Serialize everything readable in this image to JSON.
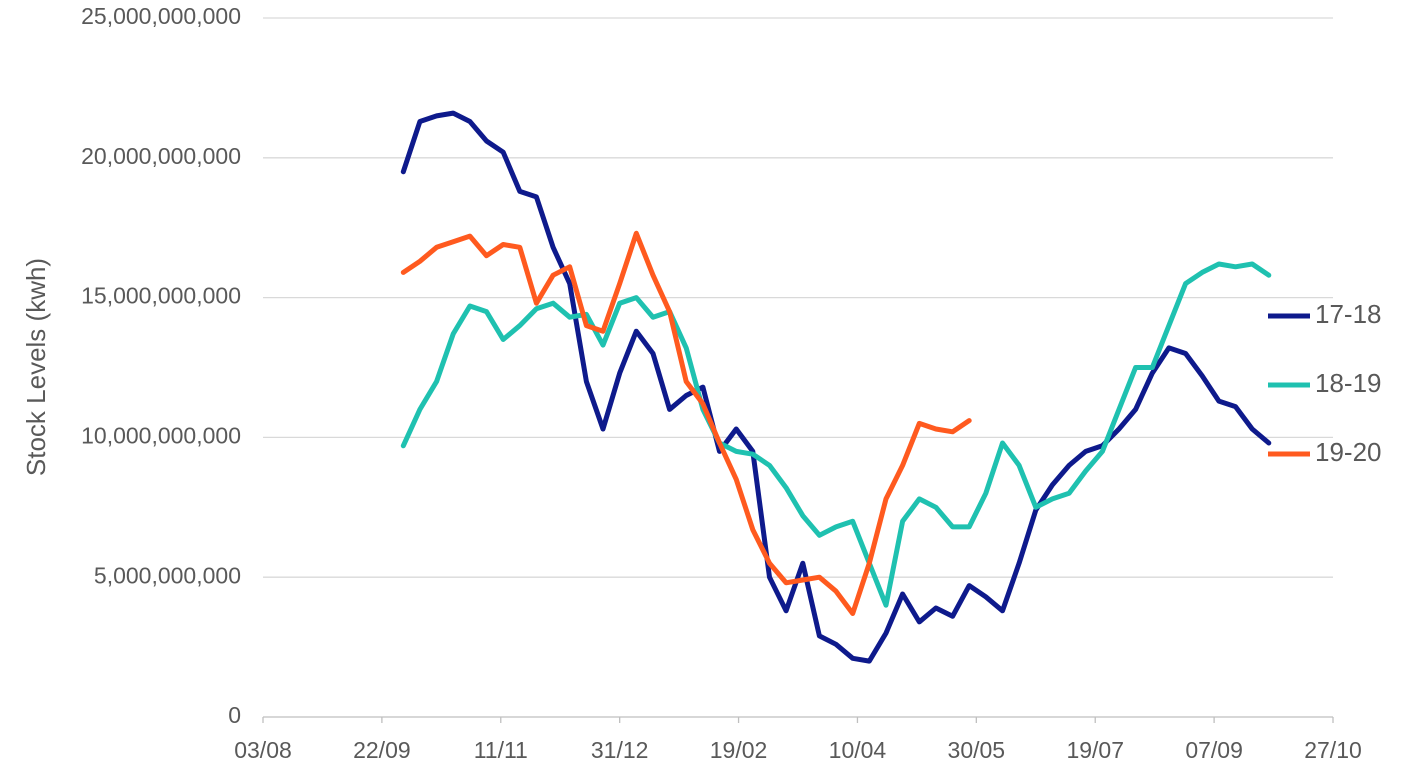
{
  "chart_data": {
    "type": "line",
    "ylabel": "Stock Levels  (kwh)",
    "x": [
      "01/10",
      "08/10",
      "15/10",
      "22/10",
      "29/10",
      "05/11",
      "12/11",
      "19/11",
      "26/11",
      "03/12",
      "10/12",
      "17/12",
      "24/12",
      "31/12",
      "07/01",
      "14/01",
      "21/01",
      "28/01",
      "04/02",
      "11/02",
      "18/02",
      "25/02",
      "04/03",
      "11/03",
      "18/03",
      "25/03",
      "01/04",
      "08/04",
      "15/04",
      "22/04",
      "29/04",
      "06/05",
      "13/05",
      "20/05",
      "27/05",
      "03/06",
      "10/06",
      "17/06",
      "24/06",
      "01/07",
      "08/07",
      "15/07",
      "22/07",
      "29/07",
      "05/08",
      "12/08",
      "19/08",
      "26/08",
      "02/09",
      "09/09",
      "16/09",
      "23/09",
      "30/09"
    ],
    "xticks": [
      "03/08",
      "22/09",
      "11/11",
      "31/12",
      "19/02",
      "10/04",
      "30/05",
      "19/07",
      "07/09",
      "27/10"
    ],
    "ylim": [
      0,
      25000000000
    ],
    "yticks": [
      {
        "value": 0,
        "label": "0"
      },
      {
        "value": 5000000000,
        "label": "5,000,000,000"
      },
      {
        "value": 10000000000,
        "label": "10,000,000,000"
      },
      {
        "value": 15000000000,
        "label": "15,000,000,000"
      },
      {
        "value": 20000000000,
        "label": "20,000,000,000"
      },
      {
        "value": 25000000000,
        "label": "25,000,000,000"
      }
    ],
    "grid": true,
    "legend": "right",
    "series": [
      {
        "name": "17-18",
        "color": "#0e1a8c",
        "values": [
          19500000000,
          21300000000,
          21500000000,
          21600000000,
          21300000000,
          20600000000,
          20200000000,
          18800000000,
          18600000000,
          16800000000,
          15500000000,
          12000000000,
          10300000000,
          12300000000,
          13800000000,
          13000000000,
          11000000000,
          11500000000,
          11800000000,
          9500000000,
          10300000000,
          9500000000,
          5000000000,
          3800000000,
          5500000000,
          2900000000,
          2600000000,
          2100000000,
          2000000000,
          3000000000,
          4400000000,
          3400000000,
          3900000000,
          3600000000,
          4700000000,
          4300000000,
          3800000000,
          5500000000,
          7400000000,
          8300000000,
          9000000000,
          9500000000,
          9700000000,
          10300000000,
          11000000000,
          12300000000,
          13200000000,
          13000000000,
          12200000000,
          11300000000,
          11100000000,
          10300000000,
          9800000000
        ]
      },
      {
        "name": "18-19",
        "color": "#1fc1b0",
        "values": [
          9700000000,
          11000000000,
          12000000000,
          13700000000,
          14700000000,
          14500000000,
          13500000000,
          14000000000,
          14600000000,
          14800000000,
          14300000000,
          14400000000,
          13300000000,
          14800000000,
          15000000000,
          14300000000,
          14500000000,
          13200000000,
          11000000000,
          9800000000,
          9500000000,
          9400000000,
          9000000000,
          8200000000,
          7200000000,
          6500000000,
          6800000000,
          7000000000,
          5500000000,
          4000000000,
          7000000000,
          7800000000,
          7500000000,
          6800000000,
          6800000000,
          8000000000,
          9800000000,
          9000000000,
          7500000000,
          7800000000,
          8000000000,
          8800000000,
          9500000000,
          11000000000,
          12500000000,
          12500000000,
          14000000000,
          15500000000,
          15900000000,
          16200000000,
          16100000000,
          16200000000,
          15800000000
        ]
      },
      {
        "name": "19-20",
        "color": "#ff5a1f",
        "values": [
          15900000000,
          16300000000,
          16800000000,
          17000000000,
          17200000000,
          16500000000,
          16900000000,
          16800000000,
          14800000000,
          15800000000,
          16100000000,
          14000000000,
          13800000000,
          15500000000,
          17300000000,
          15800000000,
          14500000000,
          12000000000,
          11200000000,
          9800000000,
          8500000000,
          6700000000,
          5500000000,
          4800000000,
          4900000000,
          5000000000,
          4500000000,
          3700000000,
          5500000000,
          7800000000,
          9000000000,
          10500000000,
          10300000000,
          10200000000,
          10600000000,
          null,
          null,
          null,
          null,
          null,
          null,
          null,
          null,
          null,
          null,
          null,
          null,
          null,
          null,
          null,
          null,
          null,
          null
        ]
      }
    ]
  }
}
